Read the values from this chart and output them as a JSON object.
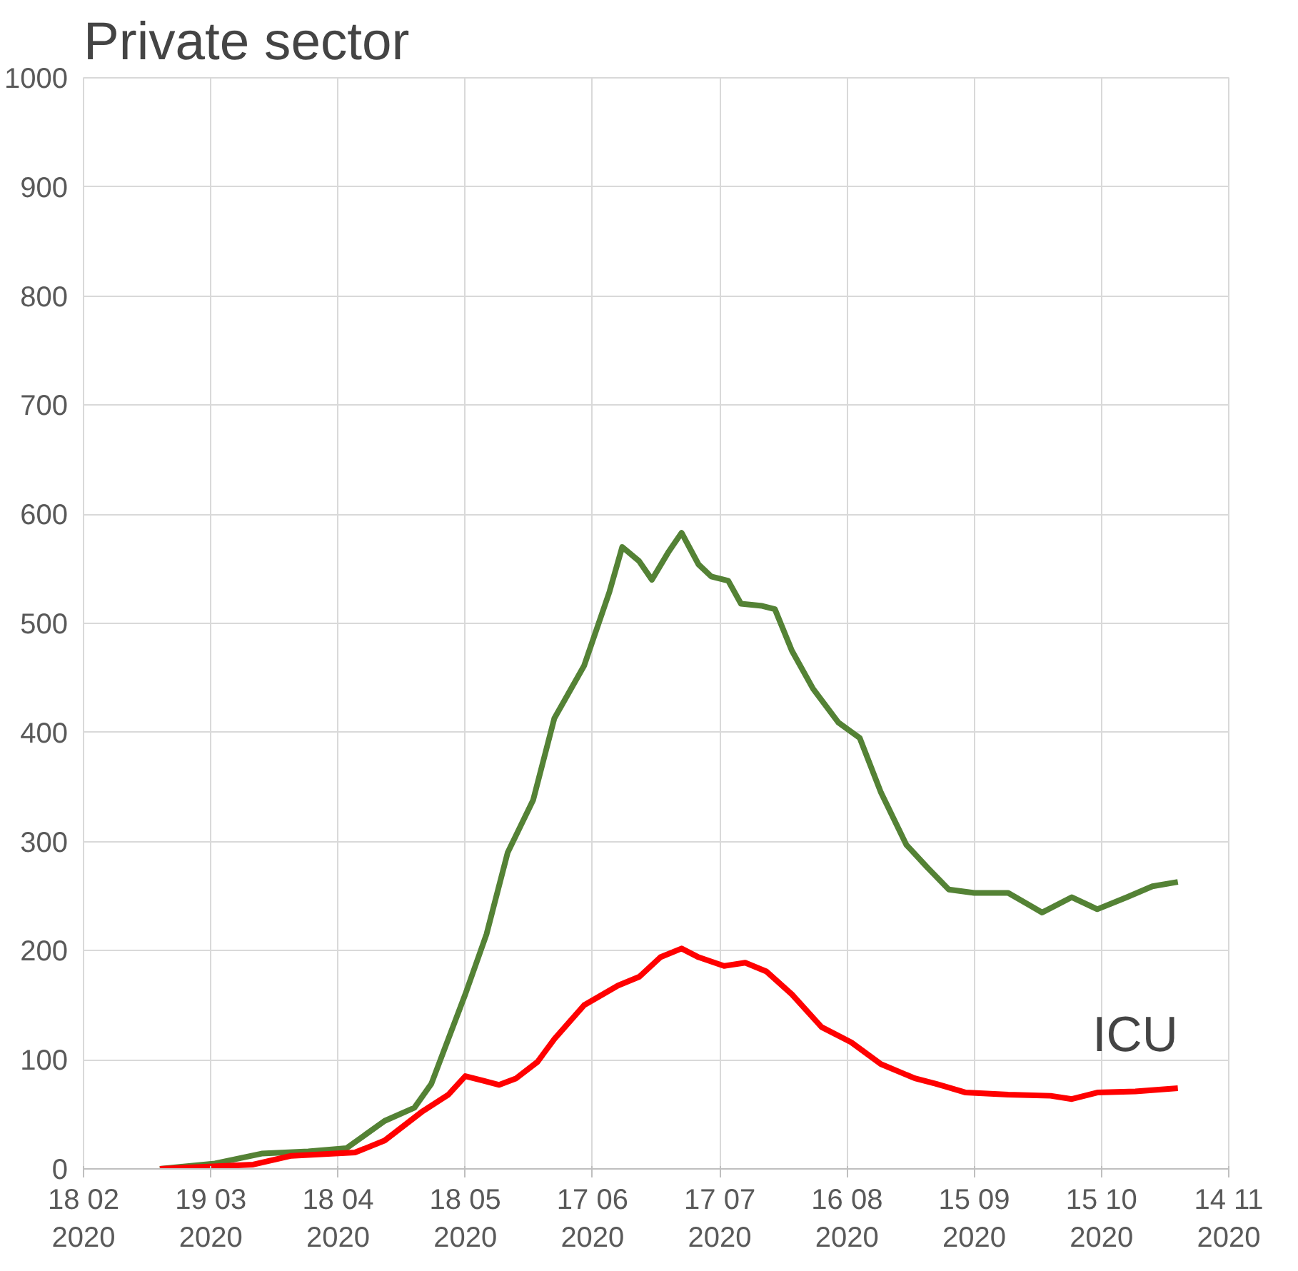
{
  "chart_data": {
    "type": "line",
    "title": "Private sector",
    "xlim": [
      "2020-02-18",
      "2020-11-14"
    ],
    "xticks": [
      {
        "value": "2020-02-18",
        "label": "18 02\n2020"
      },
      {
        "value": "2020-03-19",
        "label": "19 03\n2020"
      },
      {
        "value": "2020-04-18",
        "label": "18 04\n2020"
      },
      {
        "value": "2020-05-18",
        "label": "18 05\n2020"
      },
      {
        "value": "2020-06-17",
        "label": "17 06\n2020"
      },
      {
        "value": "2020-07-17",
        "label": "17 07\n2020"
      },
      {
        "value": "2020-08-16",
        "label": "16 08\n2020"
      },
      {
        "value": "2020-09-15",
        "label": "15 09\n2020"
      },
      {
        "value": "2020-10-15",
        "label": "15 10\n2020"
      },
      {
        "value": "2020-11-14",
        "label": "14 11\n2020"
      }
    ],
    "ylim": [
      0,
      1000
    ],
    "yticks": [
      0,
      100,
      200,
      300,
      400,
      500,
      600,
      700,
      800,
      900,
      1000
    ],
    "grid": true,
    "line_style": "solid",
    "annotations": [
      "ICU"
    ],
    "series": [
      {
        "color": "#548235",
        "x": [
          "2020-03-07",
          "2020-03-20",
          "2020-03-31",
          "2020-04-11",
          "2020-04-20",
          "2020-04-29",
          "2020-05-06",
          "2020-05-10",
          "2020-05-14",
          "2020-05-18",
          "2020-05-23",
          "2020-05-28",
          "2020-06-03",
          "2020-06-08",
          "2020-06-15",
          "2020-06-21",
          "2020-06-24",
          "2020-06-28",
          "2020-07-01",
          "2020-07-05",
          "2020-07-08",
          "2020-07-12",
          "2020-07-15",
          "2020-07-19",
          "2020-07-22",
          "2020-07-27",
          "2020-07-30",
          "2020-08-03",
          "2020-08-08",
          "2020-08-14",
          "2020-08-19",
          "2020-08-24",
          "2020-08-30",
          "2020-09-04",
          "2020-09-09",
          "2020-09-15",
          "2020-09-23",
          "2020-10-01",
          "2020-10-08",
          "2020-10-14",
          "2020-10-21",
          "2020-10-27",
          "2020-11-02"
        ],
        "values": [
          0,
          5,
          14,
          16,
          19,
          44,
          56,
          78,
          119,
          160,
          215,
          290,
          338,
          413,
          461,
          529,
          570,
          557,
          540,
          566,
          583,
          554,
          543,
          539,
          518,
          516,
          513,
          475,
          440,
          409,
          395,
          345,
          297,
          276,
          256,
          253,
          253,
          235,
          249,
          238,
          249,
          259,
          263
        ]
      },
      {
        "color": "#ff0000",
        "x": [
          "2020-03-07",
          "2020-03-29",
          "2020-04-07",
          "2020-04-22",
          "2020-04-29",
          "2020-05-08",
          "2020-05-14",
          "2020-05-18",
          "2020-05-22",
          "2020-05-26",
          "2020-05-30",
          "2020-06-04",
          "2020-06-08",
          "2020-06-15",
          "2020-06-23",
          "2020-06-28",
          "2020-07-03",
          "2020-07-08",
          "2020-07-12",
          "2020-07-18",
          "2020-07-23",
          "2020-07-28",
          "2020-08-03",
          "2020-08-10",
          "2020-08-17",
          "2020-08-24",
          "2020-09-01",
          "2020-09-06",
          "2020-09-13",
          "2020-09-23",
          "2020-10-03",
          "2020-10-08",
          "2020-10-14",
          "2020-10-23",
          "2020-11-02"
        ],
        "values": [
          0,
          4,
          12,
          15,
          26,
          53,
          68,
          85,
          81,
          77,
          83,
          98,
          119,
          150,
          168,
          176,
          194,
          202,
          194,
          186,
          189,
          181,
          160,
          130,
          116,
          96,
          83,
          78,
          70,
          68,
          67,
          64,
          70,
          71,
          74
        ]
      }
    ]
  }
}
